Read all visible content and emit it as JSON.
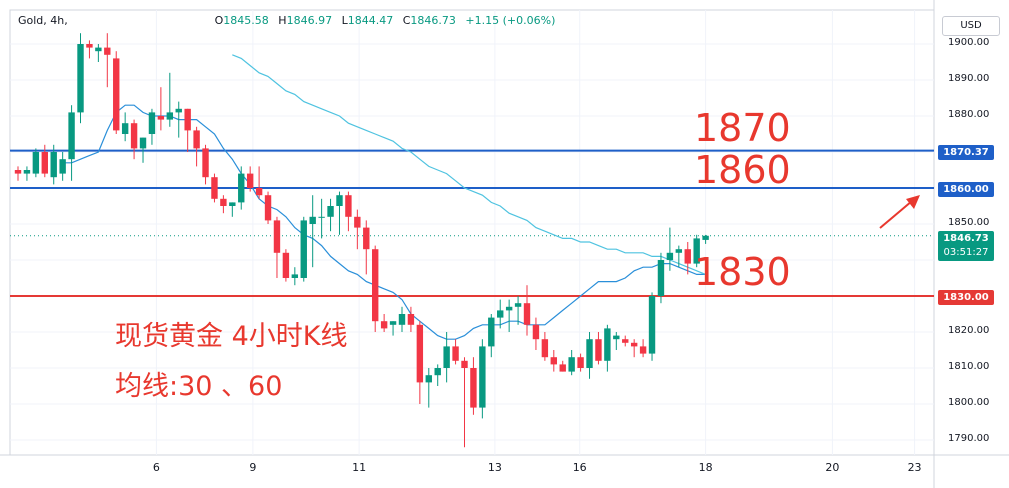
{
  "header": {
    "symbol": "Gold, 4h,",
    "open_key": "O",
    "open": "1845.58",
    "high_key": "H",
    "high": "1846.97",
    "low_key": "L",
    "low": "1844.47",
    "close_key": "C",
    "close": "1846.73",
    "change": "+1.15 (+0.06%)"
  },
  "currency_button": "USD",
  "annotations": {
    "level_1870": "1870",
    "level_1860": "1860",
    "level_1830": "1830",
    "title": "现货黄金 4小时K线",
    "ma_note": "均线:30 、60"
  },
  "price_tags": {
    "resistance_1": "1870.37",
    "resistance_2": "1860.00",
    "support": "1830.00",
    "current_price": "1846.73",
    "countdown": "03:51:27"
  },
  "colors": {
    "up": "#089981",
    "down": "#f23645",
    "ma_fast": "#2a8fd9",
    "ma_slow": "#4fc3e0",
    "hline_blue": "#1e5fc8",
    "hline_red": "#e53935",
    "annotation": "#e8382e"
  },
  "chart_data": {
    "type": "candlestick",
    "symbol": "Gold",
    "timeframe": "4h",
    "ylim": [
      1787,
      1907
    ],
    "y_ticks": [
      "1900.00",
      "1890.00",
      "1880.00",
      "1870.00",
      "1860.00",
      "1850.00",
      "1840.00",
      "1830.00",
      "1820.00",
      "1810.00",
      "1800.00",
      "1790.00"
    ],
    "y_tick_values": [
      1900,
      1890,
      1880,
      1870,
      1860,
      1850,
      1840,
      1830,
      1820,
      1810,
      1800,
      1790
    ],
    "x_ticks": [
      "6",
      "9",
      "11",
      "13",
      "16",
      "18",
      "20",
      "23"
    ],
    "x_tick_index": [
      15.5,
      26.3,
      38.2,
      53.4,
      62.9,
      77.0,
      91.2,
      100.4
    ],
    "horizontal_lines": [
      {
        "value": 1870.37,
        "color": "blue"
      },
      {
        "value": 1860.0,
        "color": "blue"
      },
      {
        "value": 1830.0,
        "color": "red"
      }
    ],
    "candles": [
      [
        1865,
        1866,
        1862,
        1864
      ],
      [
        1864,
        1866,
        1862,
        1865
      ],
      [
        1864,
        1871,
        1863,
        1870
      ],
      [
        1870,
        1872,
        1863,
        1864
      ],
      [
        1863,
        1872,
        1861,
        1870
      ],
      [
        1864,
        1870,
        1862,
        1868
      ],
      [
        1868,
        1883,
        1862,
        1881
      ],
      [
        1881,
        1903,
        1878,
        1900
      ],
      [
        1900,
        1901,
        1896,
        1899
      ],
      [
        1898,
        1900,
        1895,
        1899
      ],
      [
        1899,
        1903,
        1888,
        1897
      ],
      [
        1896,
        1898,
        1875,
        1876
      ],
      [
        1875,
        1881,
        1873,
        1878
      ],
      [
        1878,
        1879,
        1868,
        1871
      ],
      [
        1871,
        1874,
        1867,
        1874
      ],
      [
        1875,
        1882,
        1872,
        1881
      ],
      [
        1880,
        1888,
        1876,
        1879
      ],
      [
        1879,
        1892,
        1877,
        1881
      ],
      [
        1881,
        1884,
        1874,
        1882
      ],
      [
        1882,
        1882,
        1870,
        1876
      ],
      [
        1876,
        1877,
        1866,
        1871
      ],
      [
        1871,
        1872,
        1861,
        1863
      ],
      [
        1863,
        1864,
        1856,
        1857
      ],
      [
        1857,
        1858,
        1853,
        1855
      ],
      [
        1855,
        1856,
        1852,
        1856
      ],
      [
        1856,
        1866,
        1854,
        1864
      ],
      [
        1864,
        1866,
        1859,
        1860
      ],
      [
        1860,
        1866,
        1857,
        1858
      ],
      [
        1858,
        1859,
        1850,
        1851
      ],
      [
        1851,
        1852,
        1835,
        1842
      ],
      [
        1842,
        1843,
        1834,
        1835
      ],
      [
        1835,
        1838,
        1833,
        1836
      ],
      [
        1835,
        1852,
        1834,
        1851
      ],
      [
        1850,
        1858,
        1838,
        1852
      ],
      [
        1852,
        1857,
        1846,
        1852
      ],
      [
        1852,
        1857,
        1848,
        1855
      ],
      [
        1855,
        1859,
        1847,
        1858
      ],
      [
        1858,
        1859,
        1848,
        1852
      ],
      [
        1852,
        1854,
        1843,
        1849
      ],
      [
        1849,
        1851,
        1836,
        1843
      ],
      [
        1843,
        1844,
        1820,
        1823
      ],
      [
        1823,
        1825,
        1820,
        1821
      ],
      [
        1822,
        1823,
        1819,
        1823
      ],
      [
        1822,
        1827,
        1820,
        1825
      ],
      [
        1825,
        1827,
        1820,
        1822
      ],
      [
        1822,
        1823,
        1800,
        1806
      ],
      [
        1806,
        1810,
        1799,
        1808
      ],
      [
        1808,
        1811,
        1805,
        1810
      ],
      [
        1810,
        1820,
        1806,
        1816
      ],
      [
        1816,
        1818,
        1811,
        1812
      ],
      [
        1812,
        1813,
        1788,
        1810
      ],
      [
        1810,
        1813,
        1797,
        1799
      ],
      [
        1799,
        1818,
        1796,
        1816
      ],
      [
        1816,
        1825,
        1813,
        1824
      ],
      [
        1824,
        1829,
        1821,
        1826
      ],
      [
        1826,
        1829,
        1820,
        1827
      ],
      [
        1827,
        1830,
        1822,
        1828
      ],
      [
        1828,
        1833,
        1819,
        1822
      ],
      [
        1822,
        1824,
        1815,
        1818
      ],
      [
        1818,
        1820,
        1812,
        1813
      ],
      [
        1813,
        1815,
        1809,
        1811
      ],
      [
        1811,
        1812,
        1809,
        1809
      ],
      [
        1809,
        1815,
        1808,
        1813
      ],
      [
        1813,
        1814,
        1809,
        1810
      ],
      [
        1810,
        1820,
        1807,
        1818
      ],
      [
        1818,
        1820,
        1811,
        1812
      ],
      [
        1812,
        1822,
        1809,
        1821
      ],
      [
        1818,
        1820,
        1815,
        1819
      ],
      [
        1818,
        1819,
        1816,
        1817
      ],
      [
        1817,
        1818,
        1813,
        1816
      ],
      [
        1816,
        1818,
        1813,
        1814
      ],
      [
        1814,
        1831,
        1812,
        1830
      ],
      [
        1830,
        1842,
        1828,
        1840
      ],
      [
        1840,
        1849,
        1837,
        1842
      ],
      [
        1842,
        1844,
        1838,
        1843
      ],
      [
        1843,
        1845,
        1836,
        1839
      ],
      [
        1839,
        1847,
        1838,
        1846
      ],
      [
        1845.58,
        1846.97,
        1844.47,
        1846.73
      ]
    ],
    "series": [
      {
        "values": [
          1867,
          1867,
          1868,
          1869,
          1870,
          1876,
          1881,
          1883,
          1883,
          1881,
          1880,
          1880,
          1880,
          1879,
          1879,
          1879,
          1877,
          1875,
          1871,
          1868,
          1864,
          1861,
          1857,
          1855,
          1854,
          1852,
          1849,
          1847,
          1846,
          1844,
          1841,
          1839,
          1837,
          1836,
          1834,
          1833,
          1832,
          1831,
          1829,
          1825,
          1823,
          1821,
          1819,
          1818,
          1818,
          1819,
          1821,
          1822,
          1822,
          1822,
          1823,
          1823,
          1822,
          1822,
          1822,
          1824,
          1826,
          1828,
          1830,
          1832,
          1834,
          1834,
          1834,
          1835,
          1837,
          1838,
          1838,
          1839,
          1839,
          1838,
          1837,
          1836,
          1836
        ]
      },
      {
        "values": [
          1897,
          1896,
          1894,
          1892,
          1891,
          1889,
          1887,
          1886,
          1884,
          1883,
          1882,
          1881,
          1880,
          1878,
          1877,
          1876,
          1875,
          1874,
          1873,
          1871,
          1870,
          1868,
          1866,
          1865,
          1864,
          1862,
          1860,
          1859,
          1858,
          1856,
          1855,
          1853,
          1852,
          1851,
          1849,
          1848,
          1847,
          1846,
          1846,
          1845,
          1845,
          1844,
          1843,
          1843,
          1842,
          1842,
          1842,
          1841,
          1841,
          1840,
          1839,
          1838,
          1837,
          1836
        ]
      }
    ]
  }
}
